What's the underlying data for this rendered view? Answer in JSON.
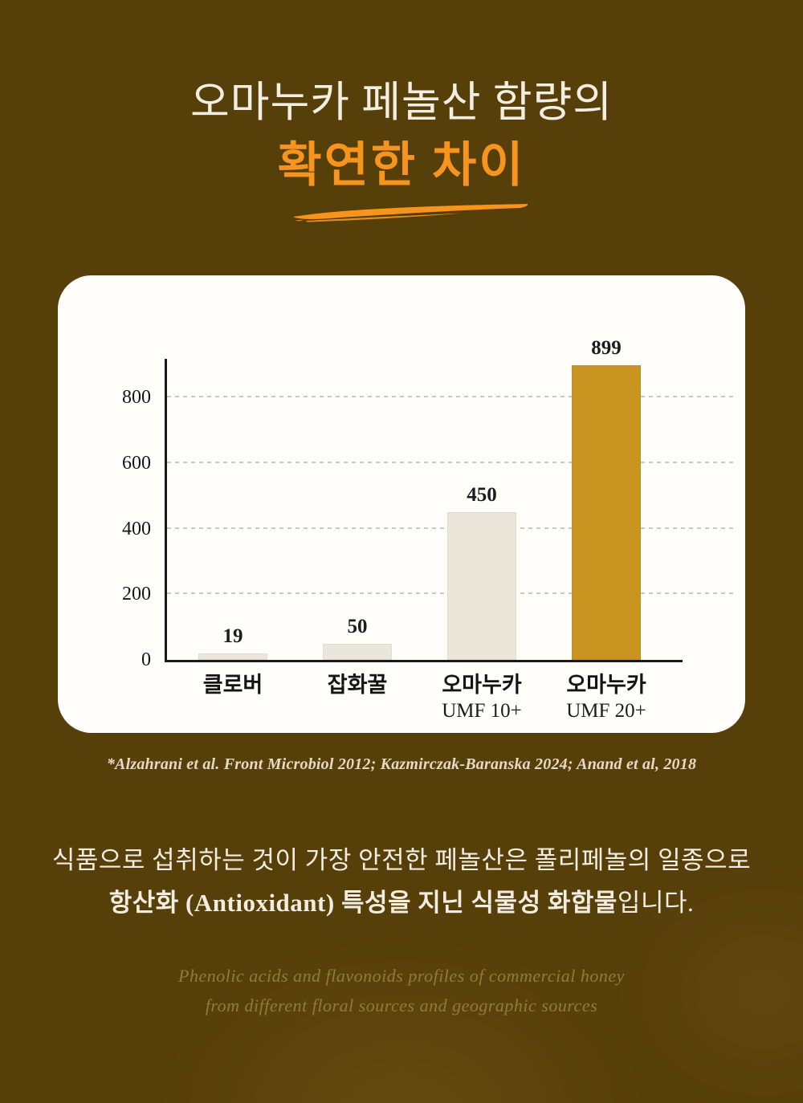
{
  "title": {
    "line1": "오마누카 페놀산 함량의",
    "line2": "확연한 차이"
  },
  "chart_data": {
    "type": "bar",
    "title": "",
    "categories": [
      "클로버",
      "잡화꿀",
      "오마누카 UMF 10+",
      "오마누카 UMF 20+"
    ],
    "category_lines": [
      [
        "클로버"
      ],
      [
        "잡화꿀"
      ],
      [
        "오마누카",
        "UMF 10+"
      ],
      [
        "오마누카",
        "UMF 20+"
      ]
    ],
    "values": [
      19,
      50,
      450,
      899
    ],
    "value_labels": [
      "19",
      "50",
      "450",
      "899"
    ],
    "bar_colors": [
      "#eae6d9",
      "#eae6d9",
      "#eae6d9",
      "#c9941f"
    ],
    "yticks": [
      0,
      200,
      400,
      600,
      800
    ],
    "ylim": [
      0,
      925
    ],
    "grid": "horizontal-dashed",
    "legend": "none",
    "xlabel": "",
    "ylabel": ""
  },
  "citation": "*Alzahrani et al. Front Microbiol 2012; Kazmirczak-Baranska 2024; Anand et al, 2018",
  "body": {
    "line1": "식품으로 섭취하는 것이 가장 안전한 페놀산은 폴리페놀의 일종으로",
    "line2_bold": "항산화 (Antioxidant) 특성을 지닌 식물성 화합물",
    "line2_tail": "입니다."
  },
  "footnote": {
    "line1": "Phenolic acids and flavonoids profiles of commercial honey",
    "line2": "from different floral sources and geographic sources"
  },
  "colors": {
    "background": "#573f0a",
    "accent_orange": "#f7941d",
    "card_white": "#fffefb",
    "bar_cream": "#eae6d9",
    "bar_gold": "#c9941f",
    "text_cream": "#f2eee2",
    "footnote_gold": "#8f7d36"
  }
}
